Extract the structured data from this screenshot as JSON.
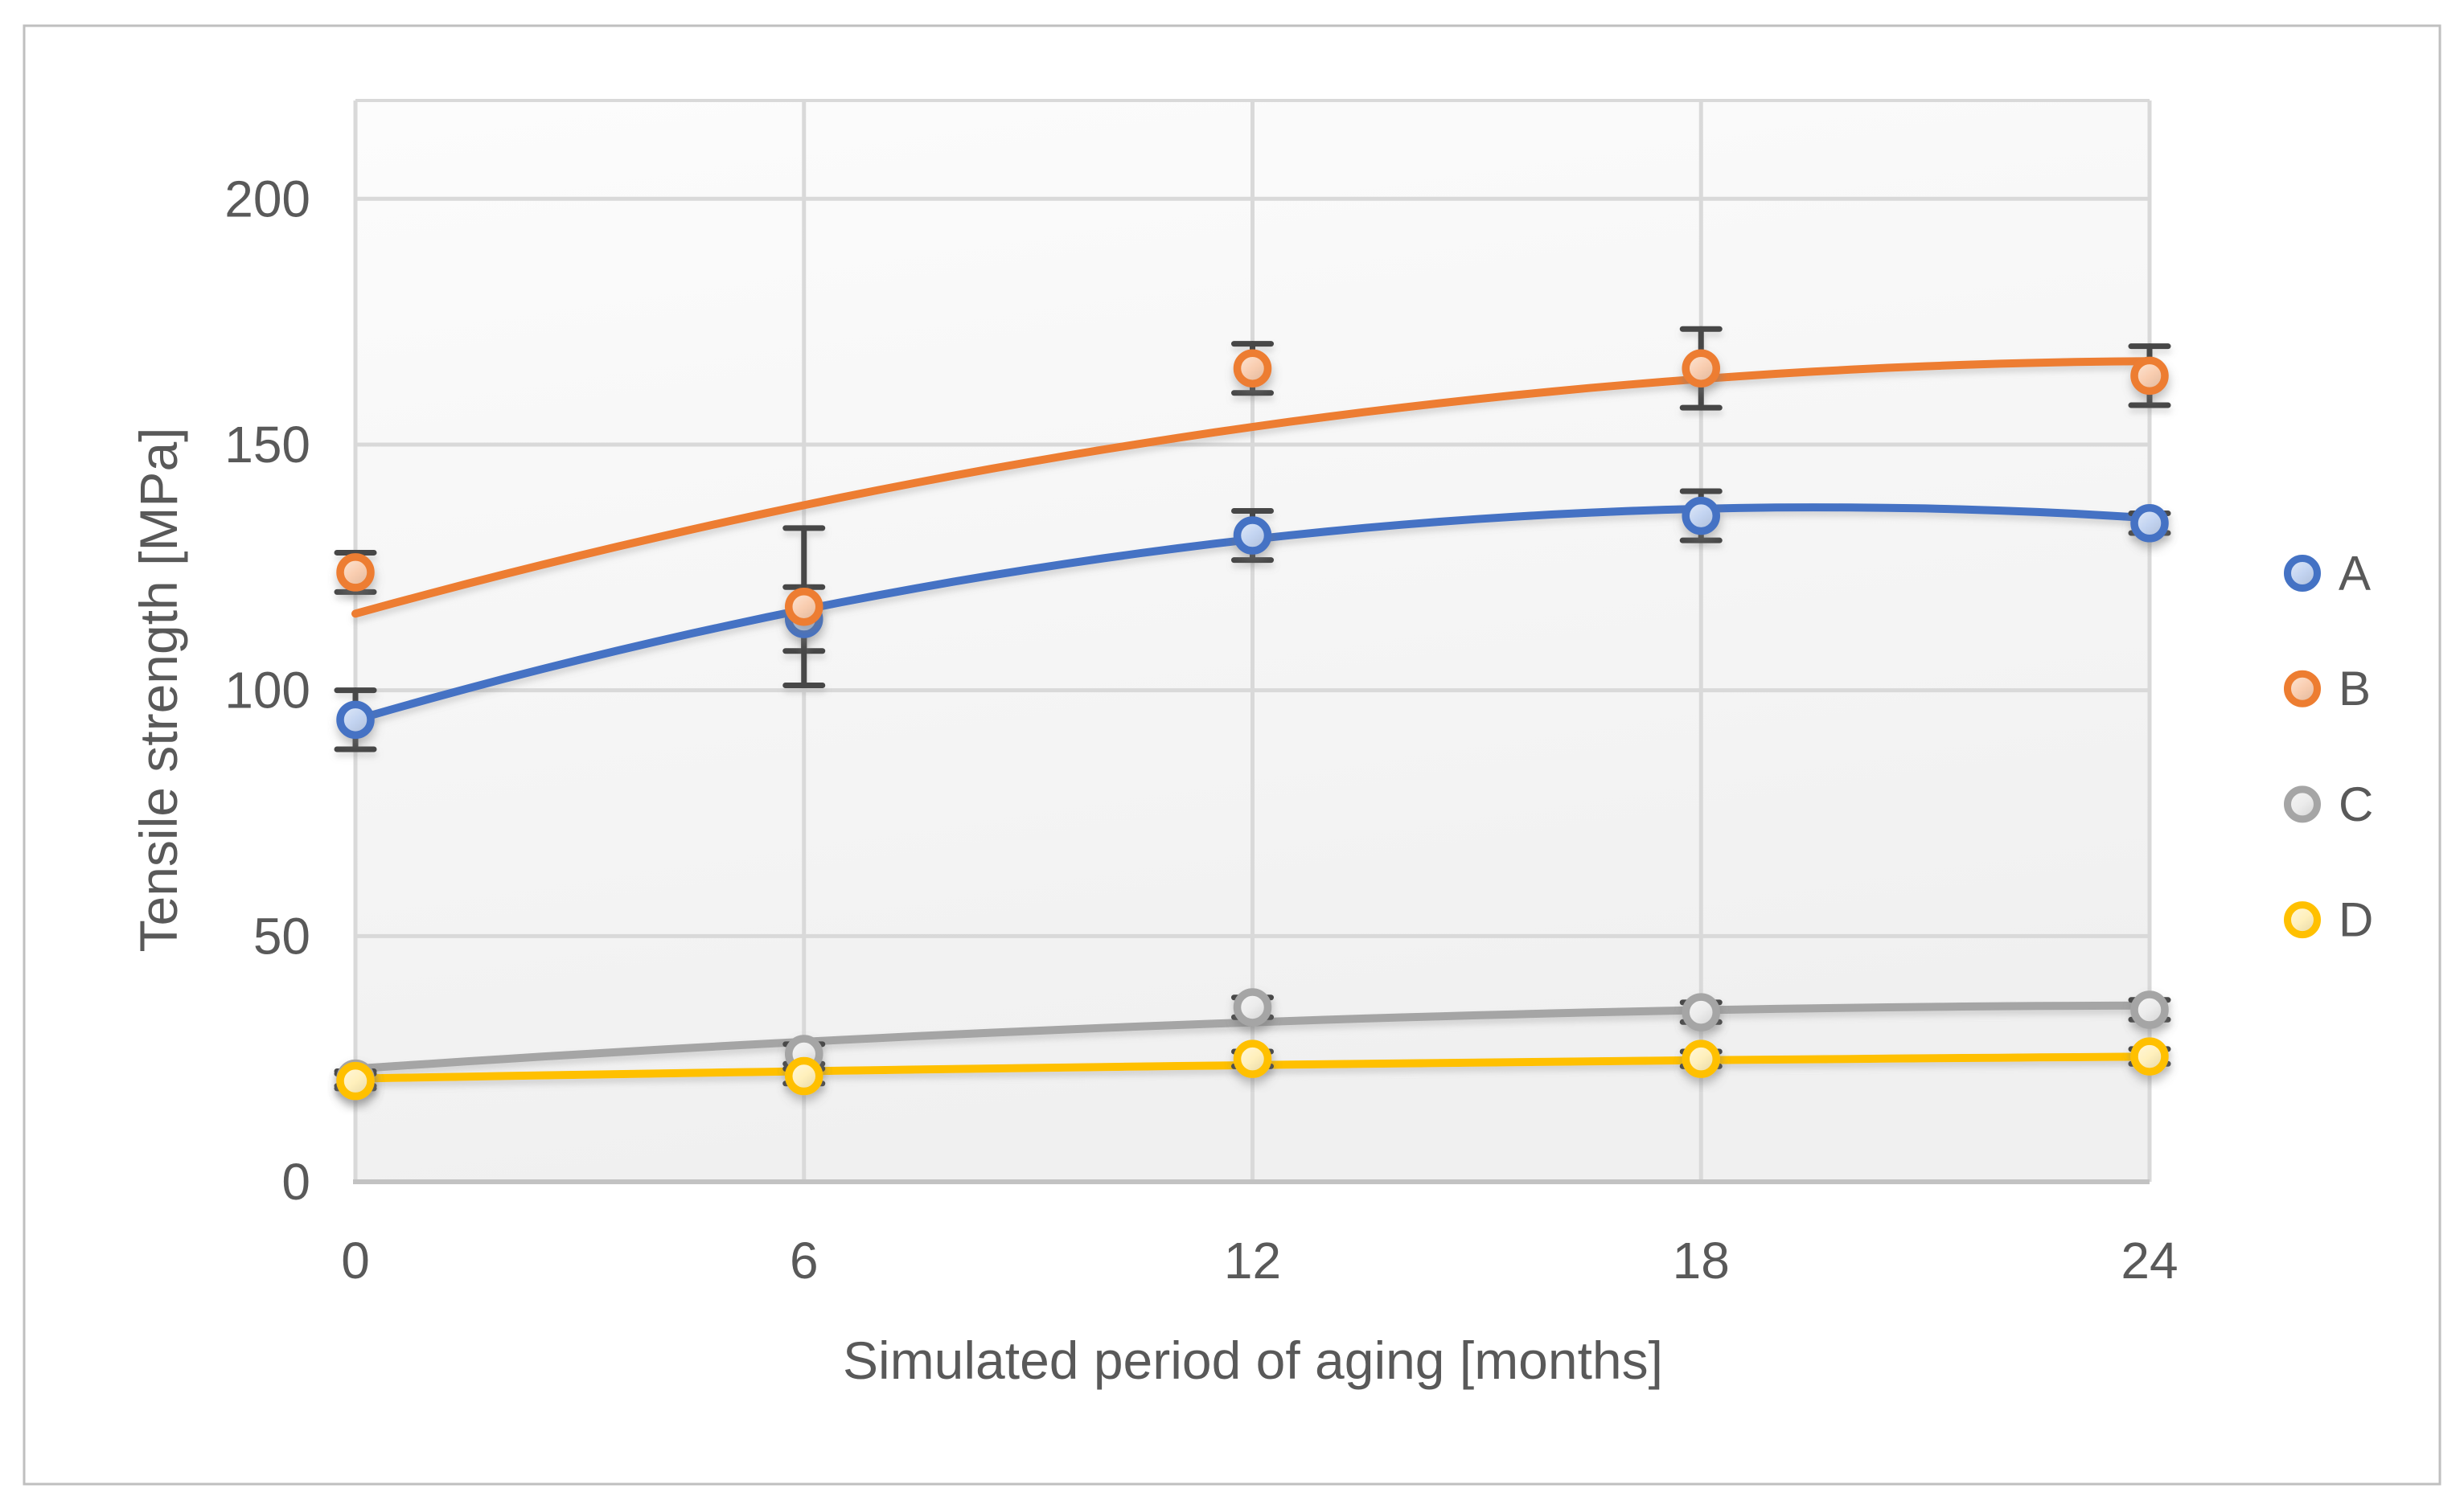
{
  "figure": {
    "background": "#FFFFFF",
    "border_color": "#BFBFBF"
  },
  "chart_data": {
    "type": "scatter",
    "title": "",
    "xlabel": "Simulated period of aging [months]",
    "ylabel": "Tensile strength [MPa]",
    "xlim": [
      0,
      24
    ],
    "ylim": [
      0,
      220
    ],
    "x_ticks": [
      0,
      6,
      12,
      18,
      24
    ],
    "y_ticks": [
      0,
      50,
      100,
      150,
      200
    ],
    "grid": true,
    "legend_position": "right",
    "marker_style": "open-circle",
    "trendline": "polynomial-order-2",
    "series": [
      {
        "name": "A",
        "color": "#4472C4",
        "fill": "#C3D4F1",
        "x": [
          0,
          6,
          12,
          18,
          24
        ],
        "y": [
          94,
          114.5,
          131.5,
          135.5,
          134
        ],
        "err": [
          6,
          6.5,
          5,
          5,
          2
        ],
        "trend": {
          "a": 94,
          "b": 4.41,
          "c": -0.1125
        }
      },
      {
        "name": "B",
        "color": "#ED7D31",
        "fill": "#F9CDB0",
        "x": [
          0,
          6,
          12,
          18,
          24
        ],
        "y": [
          124,
          117,
          165.5,
          165.5,
          164
        ],
        "err": [
          4,
          16,
          5,
          8,
          6
        ],
        "trend": {
          "a": 115.6,
          "b": 4.19,
          "c": -0.0854
        }
      },
      {
        "name": "C",
        "color": "#A5A5A5",
        "fill": "#ECECEC",
        "x": [
          0,
          6,
          12,
          18,
          24
        ],
        "y": [
          21,
          26,
          35.5,
          34.5,
          35
        ],
        "err": [
          1.5,
          2,
          2,
          2,
          2
        ],
        "trend": {
          "a": 23,
          "b": 1.04,
          "c": -0.021
        }
      },
      {
        "name": "D",
        "color": "#FFC000",
        "fill": "#FFF0BC",
        "x": [
          0,
          6,
          12,
          18,
          24
        ],
        "y": [
          20.5,
          21.5,
          25,
          25,
          25.5
        ],
        "err": [
          1.5,
          1.5,
          1.5,
          1.5,
          1.5
        ],
        "trend": {
          "a": 21,
          "b": 0.27,
          "c": -0.0035
        }
      }
    ],
    "error_bar_color": "#474747",
    "gridline_color": "#D9D9D9",
    "axis_line_color": "#C2C2C2",
    "text_color": "#595959",
    "plot_bg_top": "#FCFCFC",
    "plot_bg_bottom": "#F0F0F0"
  },
  "legend": {
    "items": [
      {
        "label": "A"
      },
      {
        "label": "B"
      },
      {
        "label": "C"
      },
      {
        "label": "D"
      }
    ]
  }
}
